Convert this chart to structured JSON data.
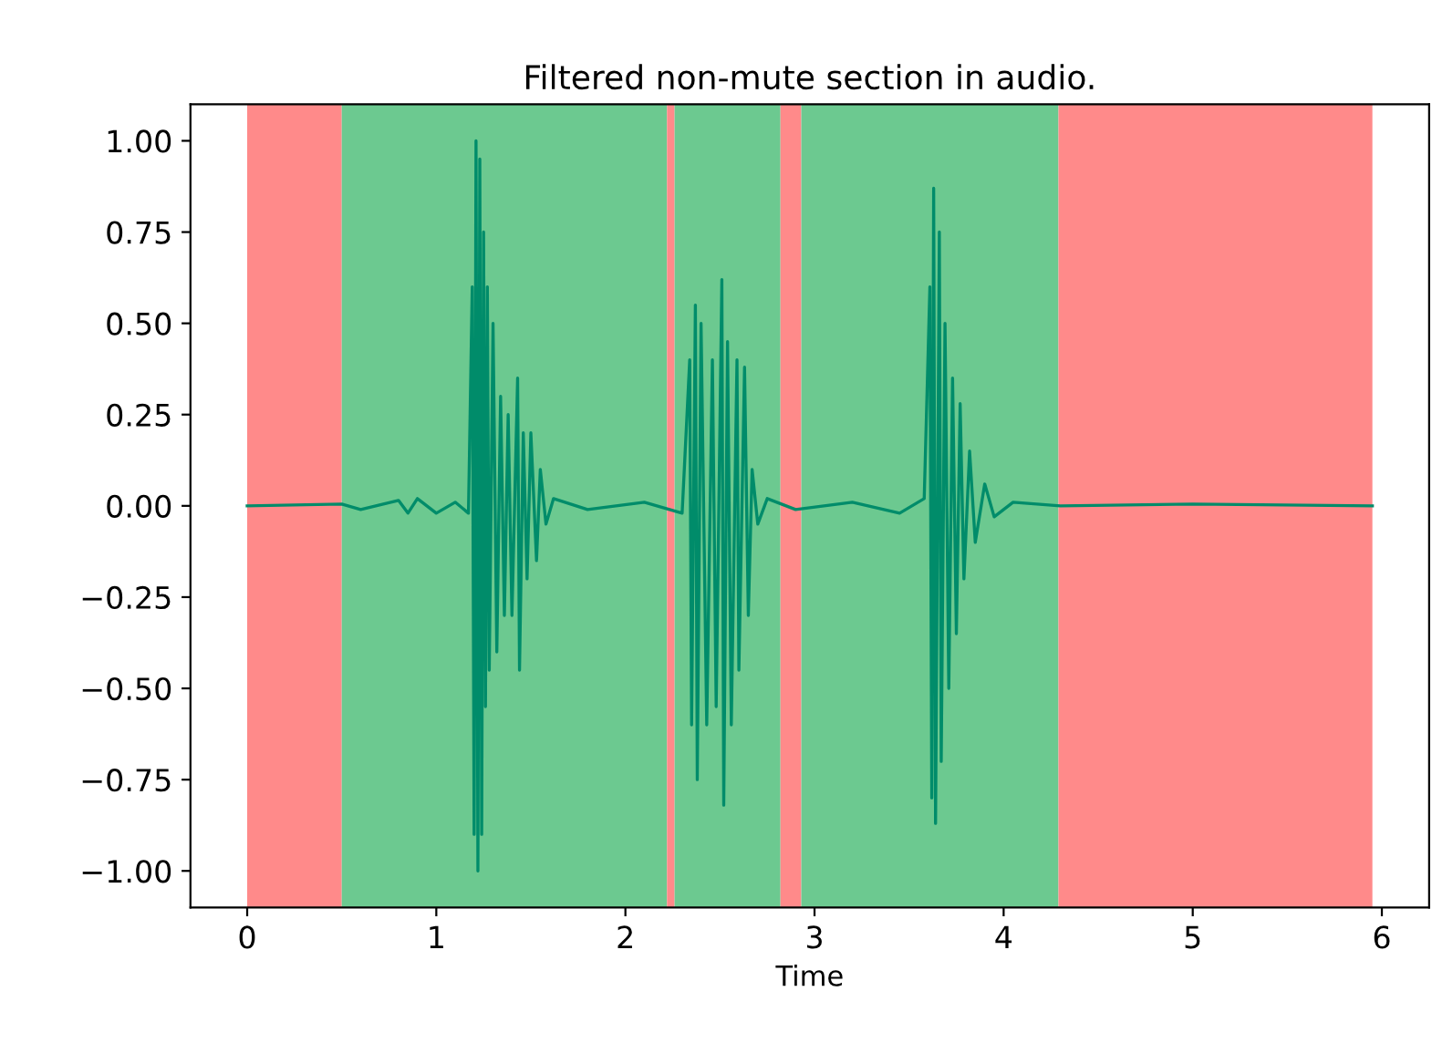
{
  "chart_data": {
    "type": "line",
    "title": "Filtered non-mute section in audio.",
    "xlabel": "Time",
    "xlim": [
      -0.3,
      6.25
    ],
    "ylim": [
      -1.1,
      1.1
    ],
    "xticks": [
      0,
      1,
      2,
      3,
      4,
      5,
      6
    ],
    "yticks": [
      {
        "value": -1,
        "label": "−1.00"
      },
      {
        "value": -0.75,
        "label": "−0.75"
      },
      {
        "value": -0.5,
        "label": "−0.50"
      },
      {
        "value": -0.25,
        "label": "−0.25"
      },
      {
        "value": 0,
        "label": "0.00"
      },
      {
        "value": 0.25,
        "label": "0.25"
      },
      {
        "value": 0.5,
        "label": "0.50"
      },
      {
        "value": 0.75,
        "label": "0.75"
      },
      {
        "value": 1,
        "label": "1.00"
      }
    ],
    "grid": false,
    "marker": "none",
    "line_style": "solid",
    "bands": [
      {
        "axis": "x",
        "from": 0,
        "to": 0.5,
        "color": "#ff8a8a"
      },
      {
        "axis": "x",
        "from": 0.5,
        "to": 2.22,
        "color": "#6cc990"
      },
      {
        "axis": "x",
        "from": 2.22,
        "to": 2.26,
        "color": "#ff8a8a"
      },
      {
        "axis": "x",
        "from": 2.26,
        "to": 2.82,
        "color": "#6cc990"
      },
      {
        "axis": "x",
        "from": 2.82,
        "to": 2.93,
        "color": "#ff8a8a"
      },
      {
        "axis": "x",
        "from": 2.93,
        "to": 4.29,
        "color": "#6cc990"
      },
      {
        "axis": "x",
        "from": 4.29,
        "to": 5.95,
        "color": "#ff8a8a"
      }
    ],
    "series": [
      {
        "color": "#008c6a",
        "x": [
          0,
          0.5,
          0.6,
          0.8,
          0.85,
          0.9,
          1.0,
          1.1,
          1.17,
          1.19,
          1.2,
          1.21,
          1.22,
          1.23,
          1.24,
          1.25,
          1.26,
          1.27,
          1.28,
          1.3,
          1.32,
          1.34,
          1.36,
          1.38,
          1.4,
          1.43,
          1.44,
          1.46,
          1.48,
          1.5,
          1.53,
          1.55,
          1.58,
          1.62,
          1.8,
          2.1,
          2.3,
          2.34,
          2.35,
          2.37,
          2.38,
          2.4,
          2.43,
          2.46,
          2.48,
          2.51,
          2.52,
          2.54,
          2.56,
          2.59,
          2.6,
          2.63,
          2.65,
          2.67,
          2.7,
          2.75,
          2.9,
          3.2,
          3.45,
          3.58,
          3.61,
          3.62,
          3.63,
          3.64,
          3.66,
          3.67,
          3.69,
          3.71,
          3.73,
          3.75,
          3.77,
          3.79,
          3.82,
          3.85,
          3.9,
          3.95,
          4.05,
          4.3,
          5.0,
          5.95
        ],
        "values": [
          0,
          0.005,
          -0.01,
          0.015,
          -0.02,
          0.02,
          -0.02,
          0.01,
          -0.02,
          0.6,
          -0.9,
          1.0,
          -1.0,
          0.95,
          -0.9,
          0.75,
          -0.55,
          0.6,
          -0.45,
          0.5,
          -0.4,
          0.3,
          -0.3,
          0.25,
          -0.3,
          0.35,
          -0.45,
          0.2,
          -0.2,
          0.2,
          -0.15,
          0.1,
          -0.05,
          0.02,
          -0.01,
          0.01,
          -0.02,
          0.4,
          -0.6,
          0.55,
          -0.75,
          0.5,
          -0.6,
          0.4,
          -0.55,
          0.62,
          -0.82,
          0.45,
          -0.6,
          0.4,
          -0.45,
          0.38,
          -0.3,
          0.1,
          -0.05,
          0.02,
          -0.01,
          0.01,
          -0.02,
          0.02,
          0.6,
          -0.8,
          0.87,
          -0.87,
          0.75,
          -0.7,
          0.5,
          -0.5,
          0.35,
          -0.35,
          0.28,
          -0.2,
          0.15,
          -0.1,
          0.06,
          -0.03,
          0.01,
          0,
          0.005,
          0
        ]
      }
    ]
  }
}
